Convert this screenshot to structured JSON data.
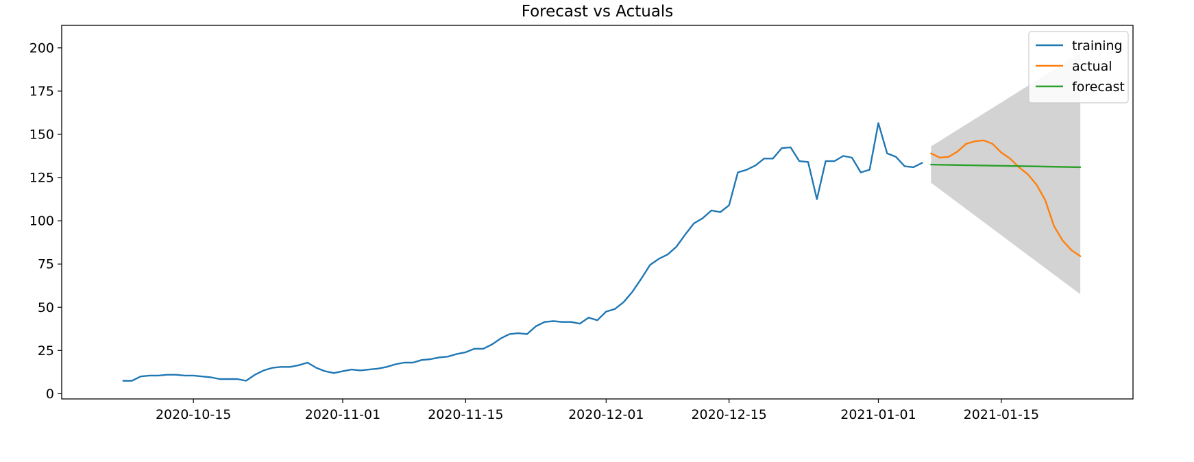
{
  "chart_data": {
    "type": "line",
    "title": "Forecast vs Actuals",
    "xlabel": "",
    "ylabel": "",
    "x_axis": {
      "kind": "date",
      "range": [
        "2020-09-30",
        "2021-01-30"
      ],
      "ticks": [
        "2020-10-15",
        "2020-11-01",
        "2020-11-15",
        "2020-12-01",
        "2020-12-15",
        "2021-01-01",
        "2021-01-15"
      ]
    },
    "y_axis": {
      "range": [
        -3,
        213
      ],
      "ticks": [
        0,
        25,
        50,
        75,
        100,
        125,
        150,
        175,
        200
      ]
    },
    "grid": false,
    "legend": {
      "placement": "top-right"
    },
    "series": [
      {
        "name": "training",
        "color": "#1f77b4",
        "x": [
          "2020-10-07",
          "2020-10-08",
          "2020-10-09",
          "2020-10-10",
          "2020-10-11",
          "2020-10-12",
          "2020-10-13",
          "2020-10-14",
          "2020-10-15",
          "2020-10-16",
          "2020-10-17",
          "2020-10-18",
          "2020-10-19",
          "2020-10-20",
          "2020-10-21",
          "2020-10-22",
          "2020-10-23",
          "2020-10-24",
          "2020-10-25",
          "2020-10-26",
          "2020-10-27",
          "2020-10-28",
          "2020-10-29",
          "2020-10-30",
          "2020-10-31",
          "2020-11-01",
          "2020-11-02",
          "2020-11-03",
          "2020-11-04",
          "2020-11-05",
          "2020-11-06",
          "2020-11-07",
          "2020-11-08",
          "2020-11-09",
          "2020-11-10",
          "2020-11-11",
          "2020-11-12",
          "2020-11-13",
          "2020-11-14",
          "2020-11-15",
          "2020-11-16",
          "2020-11-17",
          "2020-11-18",
          "2020-11-19",
          "2020-11-20",
          "2020-11-21",
          "2020-11-22",
          "2020-11-23",
          "2020-11-24",
          "2020-11-25",
          "2020-11-26",
          "2020-11-27",
          "2020-11-28",
          "2020-11-29",
          "2020-11-30",
          "2020-12-01",
          "2020-12-02",
          "2020-12-03",
          "2020-12-04",
          "2020-12-05",
          "2020-12-06",
          "2020-12-07",
          "2020-12-08",
          "2020-12-09",
          "2020-12-10",
          "2020-12-11",
          "2020-12-12",
          "2020-12-13",
          "2020-12-14",
          "2020-12-15",
          "2020-12-16",
          "2020-12-17",
          "2020-12-18",
          "2020-12-19",
          "2020-12-20",
          "2020-12-21",
          "2020-12-22",
          "2020-12-23",
          "2020-12-24",
          "2020-12-25",
          "2020-12-26",
          "2020-12-27",
          "2020-12-28",
          "2020-12-29",
          "2020-12-30",
          "2020-12-31",
          "2021-01-01",
          "2021-01-02",
          "2021-01-03",
          "2021-01-04",
          "2021-01-05",
          "2021-01-06"
        ],
        "y": [
          7.5,
          7.5,
          10,
          10.5,
          10.5,
          11,
          11,
          10.5,
          10.5,
          10,
          9.5,
          8.5,
          8.5,
          8.5,
          7.5,
          11,
          13.5,
          15,
          15.5,
          15.5,
          16.5,
          18,
          15,
          13,
          12,
          13,
          14,
          13.5,
          14,
          14.5,
          15.5,
          17,
          18,
          18,
          19.5,
          20,
          21,
          21.5,
          23,
          24,
          26,
          26,
          28.5,
          32,
          34.5,
          35,
          34.5,
          39,
          41.5,
          42,
          41.5,
          41.5,
          40.5,
          44,
          42.5,
          47.5,
          49,
          53,
          59,
          66.5,
          74.5,
          78,
          80.5,
          85,
          92,
          98.5,
          101.5,
          106,
          105,
          109,
          128,
          129.5,
          132,
          136,
          136,
          142,
          142.5,
          134.5,
          134,
          112.5,
          134.5,
          134.5,
          137.5,
          136.5,
          128,
          129.5,
          156.5,
          139,
          137,
          131.5,
          131,
          133.5
        ]
      },
      {
        "name": "actual",
        "color": "#ff7f0e",
        "x": [
          "2021-01-07",
          "2021-01-08",
          "2021-01-09",
          "2021-01-10",
          "2021-01-11",
          "2021-01-12",
          "2021-01-13",
          "2021-01-14",
          "2021-01-15",
          "2021-01-16",
          "2021-01-17",
          "2021-01-18",
          "2021-01-19",
          "2021-01-20",
          "2021-01-21",
          "2021-01-22",
          "2021-01-23",
          "2021-01-24"
        ],
        "y": [
          139,
          136.5,
          137,
          140,
          144.5,
          146,
          146.5,
          144.5,
          139.5,
          136,
          131,
          127,
          121,
          112,
          97,
          88.5,
          83,
          79.5
        ]
      },
      {
        "name": "forecast",
        "color": "#2ca02c",
        "x": [
          "2021-01-07",
          "2021-01-24"
        ],
        "y": [
          132.5,
          131
        ]
      }
    ],
    "confidence_interval": {
      "color": "#d3d3d3",
      "x": [
        "2021-01-07",
        "2021-01-24"
      ],
      "lower": [
        122,
        57.5
      ],
      "upper": [
        143,
        197
      ]
    }
  }
}
